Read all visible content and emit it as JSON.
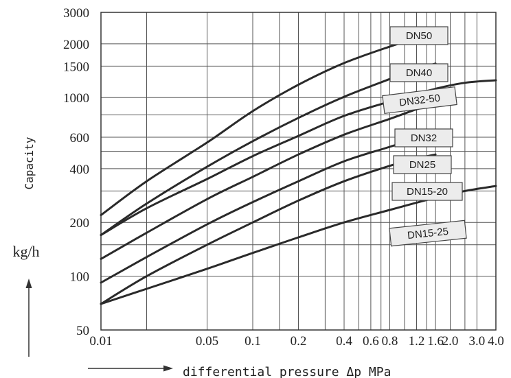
{
  "chart_data": {
    "type": "line",
    "title": "",
    "xlabel": "differential pressure Δp MPa",
    "ylabel": "Capacity",
    "yunit": "kg/h",
    "x_scale": "log",
    "y_scale": "log",
    "xlim": [
      0.01,
      4.0
    ],
    "ylim": [
      50,
      3000
    ],
    "grid": true,
    "x_ticks": [
      {
        "value": 0.01,
        "label": "0.01"
      },
      {
        "value": 0.05,
        "label": "0.05"
      },
      {
        "value": 0.1,
        "label": "0.1"
      },
      {
        "value": 0.2,
        "label": "0.2"
      },
      {
        "value": 0.4,
        "label": "0.4"
      },
      {
        "value": 0.6,
        "label": "0.6"
      },
      {
        "value": 0.8,
        "label": "0.8"
      },
      {
        "value": 1.2,
        "label": "1.2"
      },
      {
        "value": 1.6,
        "label": "1.6"
      },
      {
        "value": 2.0,
        "label": "2.0"
      },
      {
        "value": 3.0,
        "label": "3.0"
      },
      {
        "value": 4.0,
        "label": "4.0"
      }
    ],
    "x_gridlines": [
      0.01,
      0.02,
      0.05,
      0.1,
      0.15,
      0.2,
      0.3,
      0.4,
      0.5,
      0.6,
      0.7,
      0.8,
      1.0,
      1.2,
      1.4,
      1.6,
      2.0,
      2.5,
      3.0,
      4.0
    ],
    "y_ticks": [
      {
        "value": 3000,
        "label": "3000"
      },
      {
        "value": 2000,
        "label": "2000"
      },
      {
        "value": 1500,
        "label": "1500"
      },
      {
        "value": 1000,
        "label": "1000"
      },
      {
        "value": 600,
        "label": "600"
      },
      {
        "value": 400,
        "label": "400"
      },
      {
        "value": 200,
        "label": "200"
      },
      {
        "value": 100,
        "label": "100"
      },
      {
        "value": 50,
        "label": "50"
      }
    ],
    "y_gridlines": [
      50,
      100,
      150,
      200,
      300,
      400,
      500,
      600,
      800,
      1000,
      1500,
      2000,
      3000
    ],
    "series": [
      {
        "name": "DN50",
        "x": [
          0.01,
          0.02,
          0.05,
          0.1,
          0.2,
          0.4,
          0.8,
          1.2,
          1.6
        ],
        "y": [
          220,
          340,
          560,
          840,
          1180,
          1560,
          1930,
          2150,
          2300
        ]
      },
      {
        "name": "DN40",
        "x": [
          0.01,
          0.02,
          0.05,
          0.1,
          0.2,
          0.4,
          0.8,
          1.2,
          1.6
        ],
        "y": [
          170,
          255,
          410,
          570,
          770,
          1010,
          1270,
          1440,
          1550
        ]
      },
      {
        "name": "DN32-50",
        "x": [
          0.01,
          0.02,
          0.05,
          0.1,
          0.2,
          0.4,
          0.8,
          1.6,
          2.5,
          4.0
        ],
        "y": [
          170,
          240,
          350,
          470,
          610,
          790,
          950,
          1120,
          1210,
          1250
        ]
      },
      {
        "name": "DN32",
        "x": [
          0.01,
          0.02,
          0.05,
          0.1,
          0.2,
          0.4,
          0.8,
          1.2,
          1.6
        ],
        "y": [
          125,
          175,
          270,
          360,
          480,
          620,
          760,
          860,
          920
        ]
      },
      {
        "name": "DN25",
        "x": [
          0.01,
          0.02,
          0.05,
          0.1,
          0.2,
          0.4,
          0.8,
          1.2,
          1.6
        ],
        "y": [
          92,
          128,
          195,
          260,
          340,
          440,
          530,
          590,
          630
        ]
      },
      {
        "name": "DN15-20",
        "x": [
          0.01,
          0.02,
          0.05,
          0.1,
          0.2,
          0.4,
          0.8,
          1.2,
          1.6
        ],
        "y": [
          70,
          100,
          150,
          200,
          265,
          340,
          415,
          455,
          480
        ]
      },
      {
        "name": "DN15-25",
        "x": [
          0.01,
          0.02,
          0.05,
          0.1,
          0.2,
          0.4,
          0.8,
          1.6,
          2.5,
          4.0
        ],
        "y": [
          70,
          85,
          110,
          135,
          165,
          200,
          235,
          275,
          300,
          320
        ]
      }
    ]
  }
}
